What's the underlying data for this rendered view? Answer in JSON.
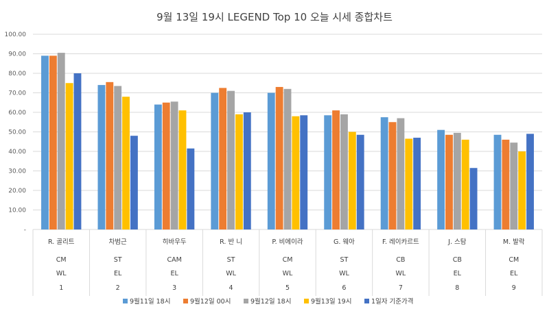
{
  "chart_data": {
    "type": "bar",
    "title": "9월 13일 19시 LEGEND Top 10 오늘 시세 종합차트",
    "ylim": [
      0,
      100
    ],
    "y_ticks": [
      "-",
      "10.00",
      "20.00",
      "30.00",
      "40.00",
      "50.00",
      "60.00",
      "70.00",
      "80.00",
      "90.00",
      "100.00"
    ],
    "grid": true,
    "legend_position": "bottom",
    "categories": [
      {
        "name": "R. 골리트",
        "position": "CM",
        "card": "WL",
        "rank": "1"
      },
      {
        "name": "차범근",
        "position": "ST",
        "card": "EL",
        "rank": "2"
      },
      {
        "name": "히바우두",
        "position": "CAM",
        "card": "EL",
        "rank": "3"
      },
      {
        "name": "R. 반 니",
        "position": "ST",
        "card": "WL",
        "rank": "4"
      },
      {
        "name": "P. 비에이라",
        "position": "CM",
        "card": "WL",
        "rank": "5"
      },
      {
        "name": "G. 웨아",
        "position": "ST",
        "card": "WL",
        "rank": "6"
      },
      {
        "name": "F. 레이카르트",
        "position": "CB",
        "card": "WL",
        "rank": "7"
      },
      {
        "name": "J. 스탐",
        "position": "CB",
        "card": "EL",
        "rank": "8"
      },
      {
        "name": "M. 발락",
        "position": "CM",
        "card": "EL",
        "rank": "9"
      }
    ],
    "series": [
      {
        "name": "9월11일 18시",
        "color": "#5B9BD5",
        "values": [
          89,
          74,
          64,
          70,
          70,
          58.5,
          57.5,
          51,
          48.5
        ]
      },
      {
        "name": "9월12일 00시",
        "color": "#ED7D31",
        "values": [
          89,
          75.5,
          65,
          72.5,
          73,
          61,
          55,
          48.5,
          46
        ]
      },
      {
        "name": "9월12일 18시",
        "color": "#A5A5A5",
        "values": [
          90.5,
          73.5,
          65.5,
          71,
          72,
          59,
          57,
          49.5,
          44.5
        ]
      },
      {
        "name": "9월13일 19시",
        "color": "#FFC000",
        "values": [
          75,
          68,
          61,
          59,
          58,
          50,
          46.5,
          46,
          40
        ]
      },
      {
        "name": "1일자 기준가격",
        "color": "#4472C4",
        "values": [
          80,
          48,
          41.5,
          60,
          58.5,
          48.5,
          47,
          31.5,
          49
        ]
      }
    ]
  }
}
